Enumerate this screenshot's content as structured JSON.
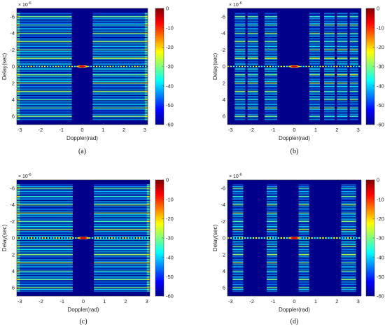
{
  "chart_data": [
    {
      "type": "heatmap",
      "panel": "(a)",
      "caption": "(a)",
      "xlabel": "Doppler(rad)",
      "ylabel": "Delay(sec)",
      "y_exponent": "× 10^-6",
      "x_ticks": [
        "-3",
        "-2",
        "-1",
        "0",
        "1",
        "2",
        "3"
      ],
      "y_ticks": [
        "-6",
        "-4",
        "-2",
        "0",
        "2",
        "4",
        "6"
      ],
      "xlim": [
        -3.14,
        3.14
      ],
      "ylim": [
        -7,
        7
      ],
      "colorbar_ticks": [
        "0",
        "-10",
        "-20",
        "-30",
        "-40",
        "-50",
        "-60"
      ],
      "clim": [
        -60,
        0
      ],
      "bands": [
        [
          -3.14,
          -0.5
        ],
        [
          0.5,
          3.14
        ]
      ],
      "peak": [
        0,
        0
      ]
    },
    {
      "type": "heatmap",
      "panel": "(b)",
      "caption": "(b)",
      "xlabel": "Doppler(rad)",
      "ylabel": "Delay(sec)",
      "y_exponent": "× 10^-6",
      "x_ticks": [
        "-3",
        "-2",
        "-1",
        "0",
        "1",
        "2",
        "3"
      ],
      "y_ticks": [
        "-6",
        "-4",
        "-2",
        "0",
        "2",
        "4",
        "6"
      ],
      "xlim": [
        -3.14,
        3.14
      ],
      "ylim": [
        -7,
        7
      ],
      "colorbar_ticks": [
        "0",
        "-10",
        "-20",
        "-30",
        "-40",
        "-50",
        "-60"
      ],
      "clim": [
        -60,
        0
      ],
      "bands": [
        [
          -2.8,
          -2.3
        ],
        [
          -2.2,
          -1.7
        ],
        [
          -1.4,
          -0.8
        ],
        [
          0.7,
          1.2
        ],
        [
          1.4,
          1.9
        ],
        [
          2.0,
          2.5
        ],
        [
          2.6,
          3.0
        ]
      ],
      "peak": [
        0,
        0
      ]
    },
    {
      "type": "heatmap",
      "panel": "(c)",
      "caption": "(c)",
      "xlabel": "Doppler(rad)",
      "ylabel": "Delay(sec)",
      "y_exponent": "× 10^-6",
      "x_ticks": [
        "-3",
        "-2",
        "-1",
        "0",
        "1",
        "2",
        "3"
      ],
      "y_ticks": [
        "-6",
        "-4",
        "-2",
        "0",
        "2",
        "4",
        "6"
      ],
      "xlim": [
        -3.14,
        3.14
      ],
      "ylim": [
        -7,
        7
      ],
      "colorbar_ticks": [
        "0",
        "-10",
        "-20",
        "-30",
        "-40",
        "-50",
        "-60"
      ],
      "clim": [
        -60,
        0
      ],
      "bands": [
        [
          -3.14,
          -0.5
        ],
        [
          0.5,
          3.14
        ]
      ],
      "peak": [
        0,
        0
      ]
    },
    {
      "type": "heatmap",
      "panel": "(d)",
      "caption": "(d)",
      "xlabel": "Doppler(rad)",
      "ylabel": "Delay(sec)",
      "y_exponent": "× 10^-6",
      "x_ticks": [
        "-3",
        "-2",
        "-1",
        "0",
        "1",
        "2",
        "3"
      ],
      "y_ticks": [
        "-6",
        "-4",
        "-2",
        "0",
        "2",
        "4",
        "6"
      ],
      "xlim": [
        -3.14,
        3.14
      ],
      "ylim": [
        -7,
        7
      ],
      "colorbar_ticks": [
        "0",
        "-10",
        "-20",
        "-30",
        "-40",
        "-50",
        "-60"
      ],
      "clim": [
        -60,
        0
      ],
      "bands": [
        [
          -2.9,
          -2.4
        ],
        [
          -1.3,
          -0.8
        ],
        [
          0.2,
          0.7
        ],
        [
          2.2,
          2.9
        ]
      ],
      "peak": [
        0,
        0
      ]
    }
  ]
}
